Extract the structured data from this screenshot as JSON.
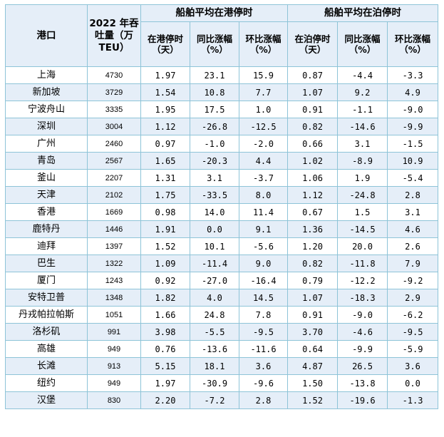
{
  "headers": {
    "port": "港口",
    "throughput": "2022 年吞吐量（万 TEU）",
    "group_port": "船舶平均在港停时",
    "group_berth": "船舶平均在泊停时",
    "port_time": "在港停时（天）",
    "berth_time": "在泊停时（天）",
    "yoy": "同比涨幅（%）",
    "mom": "环比涨幅（%）"
  },
  "rows": [
    {
      "port": "上海",
      "teu": "4730",
      "port_days": "1.97",
      "port_yoy": "23.1",
      "port_mom": "15.9",
      "berth_days": "0.87",
      "berth_yoy": "-4.4",
      "berth_mom": "-3.3"
    },
    {
      "port": "新加坡",
      "teu": "3729",
      "port_days": "1.54",
      "port_yoy": "10.8",
      "port_mom": "7.7",
      "berth_days": "1.07",
      "berth_yoy": "9.2",
      "berth_mom": "4.9"
    },
    {
      "port": "宁波舟山",
      "teu": "3335",
      "port_days": "1.95",
      "port_yoy": "17.5",
      "port_mom": "1.0",
      "berth_days": "0.91",
      "berth_yoy": "-1.1",
      "berth_mom": "-9.0"
    },
    {
      "port": "深圳",
      "teu": "3004",
      "port_days": "1.12",
      "port_yoy": "-26.8",
      "port_mom": "-12.5",
      "berth_days": "0.82",
      "berth_yoy": "-14.6",
      "berth_mom": "-9.9"
    },
    {
      "port": "广州",
      "teu": "2460",
      "port_days": "0.97",
      "port_yoy": "-1.0",
      "port_mom": "-2.0",
      "berth_days": "0.66",
      "berth_yoy": "3.1",
      "berth_mom": "-1.5"
    },
    {
      "port": "青岛",
      "teu": "2567",
      "port_days": "1.65",
      "port_yoy": "-20.3",
      "port_mom": "4.4",
      "berth_days": "1.02",
      "berth_yoy": "-8.9",
      "berth_mom": "10.9"
    },
    {
      "port": "釜山",
      "teu": "2207",
      "port_days": "1.31",
      "port_yoy": "3.1",
      "port_mom": "-3.7",
      "berth_days": "1.06",
      "berth_yoy": "1.9",
      "berth_mom": "-5.4"
    },
    {
      "port": "天津",
      "teu": "2102",
      "port_days": "1.75",
      "port_yoy": "-33.5",
      "port_mom": "8.0",
      "berth_days": "1.12",
      "berth_yoy": "-24.8",
      "berth_mom": "2.8"
    },
    {
      "port": "香港",
      "teu": "1669",
      "port_days": "0.98",
      "port_yoy": "14.0",
      "port_mom": "11.4",
      "berth_days": "0.67",
      "berth_yoy": "1.5",
      "berth_mom": "3.1"
    },
    {
      "port": "鹿特丹",
      "teu": "1446",
      "port_days": "1.91",
      "port_yoy": "0.0",
      "port_mom": "9.1",
      "berth_days": "1.36",
      "berth_yoy": "-14.5",
      "berth_mom": "4.6"
    },
    {
      "port": "迪拜",
      "teu": "1397",
      "port_days": "1.52",
      "port_yoy": "10.1",
      "port_mom": "-5.6",
      "berth_days": "1.20",
      "berth_yoy": "20.0",
      "berth_mom": "2.6"
    },
    {
      "port": "巴生",
      "teu": "1322",
      "port_days": "1.09",
      "port_yoy": "-11.4",
      "port_mom": "9.0",
      "berth_days": "0.82",
      "berth_yoy": "-11.8",
      "berth_mom": "7.9"
    },
    {
      "port": "厦门",
      "teu": "1243",
      "port_days": "0.92",
      "port_yoy": "-27.0",
      "port_mom": "-16.4",
      "berth_days": "0.79",
      "berth_yoy": "-12.2",
      "berth_mom": "-9.2"
    },
    {
      "port": "安特卫普",
      "teu": "1348",
      "port_days": "1.82",
      "port_yoy": "4.0",
      "port_mom": "14.5",
      "berth_days": "1.07",
      "berth_yoy": "-18.3",
      "berth_mom": "2.9"
    },
    {
      "port": "丹戎帕拉帕斯",
      "teu": "1051",
      "port_days": "1.66",
      "port_yoy": "24.8",
      "port_mom": "7.8",
      "berth_days": "0.91",
      "berth_yoy": "-9.0",
      "berth_mom": "-6.2"
    },
    {
      "port": "洛杉矶",
      "teu": "991",
      "port_days": "3.98",
      "port_yoy": "-5.5",
      "port_mom": "-9.5",
      "berth_days": "3.70",
      "berth_yoy": "-4.6",
      "berth_mom": "-9.5"
    },
    {
      "port": "高雄",
      "teu": "949",
      "port_days": "0.76",
      "port_yoy": "-13.6",
      "port_mom": "-11.6",
      "berth_days": "0.64",
      "berth_yoy": "-9.9",
      "berth_mom": "-5.9"
    },
    {
      "port": "长滩",
      "teu": "913",
      "port_days": "5.15",
      "port_yoy": "18.1",
      "port_mom": "3.6",
      "berth_days": "4.87",
      "berth_yoy": "26.5",
      "berth_mom": "3.6"
    },
    {
      "port": "纽约",
      "teu": "949",
      "port_days": "1.97",
      "port_yoy": "-30.9",
      "port_mom": "-9.6",
      "berth_days": "1.50",
      "berth_yoy": "-13.8",
      "berth_mom": "0.0"
    },
    {
      "port": "汉堡",
      "teu": "830",
      "port_days": "2.20",
      "port_yoy": "-7.2",
      "port_mom": "2.8",
      "berth_days": "1.52",
      "berth_yoy": "-19.6",
      "berth_mom": "-1.3"
    }
  ],
  "colors": {
    "header_bg": "#e5eef8",
    "stripe_bg": "#e5eef8",
    "border": "#8ec4d8"
  }
}
